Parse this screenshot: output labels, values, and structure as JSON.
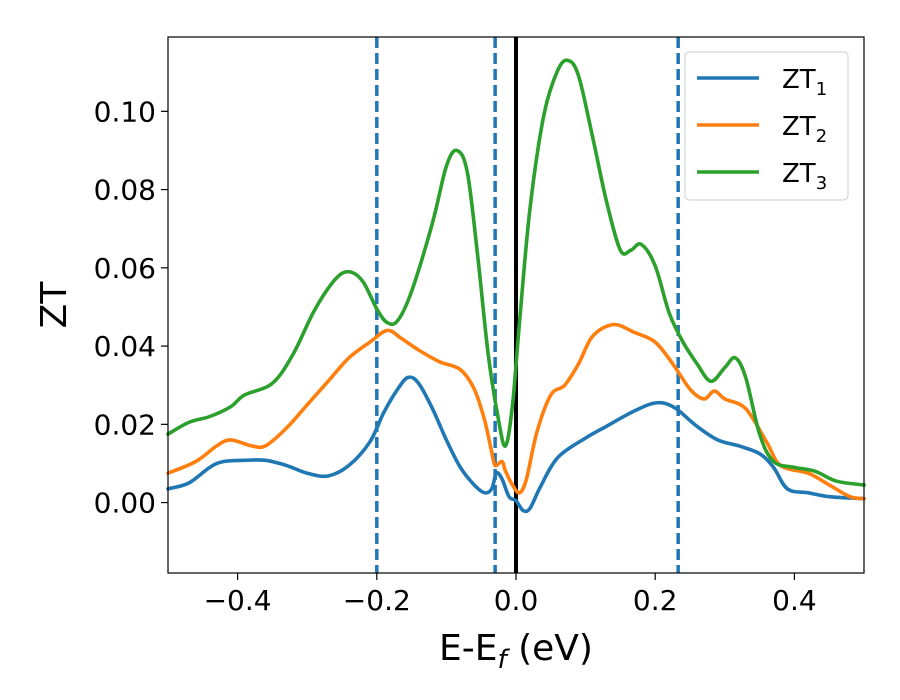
{
  "chart_data": {
    "type": "line",
    "title": "",
    "xlabel": {
      "main": "E-E",
      "sub": "f",
      "suffix": " (eV)"
    },
    "ylabel": "ZT",
    "xlim": [
      -0.5,
      0.5
    ],
    "ylim": [
      -0.018,
      0.119
    ],
    "xticks": [
      -0.4,
      -0.2,
      0.0,
      0.2,
      0.4
    ],
    "xtick_labels": [
      "−0.4",
      "−0.2",
      "0.0",
      "0.2",
      "0.4"
    ],
    "yticks": [
      0.0,
      0.02,
      0.04,
      0.06,
      0.08,
      0.1
    ],
    "ytick_labels": [
      "0.00",
      "0.02",
      "0.04",
      "0.06",
      "0.08",
      "0.10"
    ],
    "grid": false,
    "legend_position": "top-right",
    "vlines": [
      {
        "x": 0.0,
        "style": "solid",
        "color": "#000000"
      },
      {
        "x": -0.2,
        "style": "dashed",
        "color": "#1f77b4"
      },
      {
        "x": -0.03,
        "style": "dashed",
        "color": "#1f77b4"
      },
      {
        "x": 0.233,
        "style": "dashed",
        "color": "#1f77b4"
      }
    ],
    "series": [
      {
        "name": "ZT",
        "sub": "1",
        "color": "#1f77b4",
        "points": [
          [
            -0.5,
            0.0035
          ],
          [
            -0.47,
            0.005
          ],
          [
            -0.44,
            0.009
          ],
          [
            -0.42,
            0.0105
          ],
          [
            -0.39,
            0.0108
          ],
          [
            -0.36,
            0.0108
          ],
          [
            -0.33,
            0.0095
          ],
          [
            -0.3,
            0.0075
          ],
          [
            -0.27,
            0.0068
          ],
          [
            -0.24,
            0.0095
          ],
          [
            -0.21,
            0.0155
          ],
          [
            -0.19,
            0.023
          ],
          [
            -0.17,
            0.029
          ],
          [
            -0.155,
            0.032
          ],
          [
            -0.14,
            0.0305
          ],
          [
            -0.12,
            0.024
          ],
          [
            -0.1,
            0.016
          ],
          [
            -0.08,
            0.009
          ],
          [
            -0.06,
            0.0045
          ],
          [
            -0.045,
            0.0025
          ],
          [
            -0.035,
            0.0035
          ],
          [
            -0.028,
            0.0075
          ],
          [
            -0.02,
            0.006
          ],
          [
            -0.01,
            0.0015
          ],
          [
            0.0,
            0.0005
          ],
          [
            0.01,
            -0.002
          ],
          [
            0.02,
            -0.0015
          ],
          [
            0.035,
            0.004
          ],
          [
            0.06,
            0.0115
          ],
          [
            0.1,
            0.0165
          ],
          [
            0.13,
            0.0195
          ],
          [
            0.16,
            0.0225
          ],
          [
            0.19,
            0.025
          ],
          [
            0.21,
            0.0255
          ],
          [
            0.23,
            0.024
          ],
          [
            0.26,
            0.0195
          ],
          [
            0.29,
            0.016
          ],
          [
            0.32,
            0.0145
          ],
          [
            0.35,
            0.0125
          ],
          [
            0.37,
            0.009
          ],
          [
            0.39,
            0.0035
          ],
          [
            0.42,
            0.0025
          ],
          [
            0.45,
            0.0015
          ],
          [
            0.5,
            0.001
          ]
        ]
      },
      {
        "name": "ZT",
        "sub": "2",
        "color": "#ff7f0e",
        "points": [
          [
            -0.5,
            0.0075
          ],
          [
            -0.46,
            0.0105
          ],
          [
            -0.43,
            0.0145
          ],
          [
            -0.41,
            0.016
          ],
          [
            -0.38,
            0.0145
          ],
          [
            -0.36,
            0.0145
          ],
          [
            -0.33,
            0.019
          ],
          [
            -0.3,
            0.025
          ],
          [
            -0.27,
            0.031
          ],
          [
            -0.24,
            0.037
          ],
          [
            -0.21,
            0.041
          ],
          [
            -0.185,
            0.044
          ],
          [
            -0.165,
            0.042
          ],
          [
            -0.14,
            0.039
          ],
          [
            -0.11,
            0.036
          ],
          [
            -0.08,
            0.034
          ],
          [
            -0.06,
            0.029
          ],
          [
            -0.045,
            0.021
          ],
          [
            -0.035,
            0.013
          ],
          [
            -0.03,
            0.0095
          ],
          [
            -0.02,
            0.0105
          ],
          [
            -0.015,
            0.008
          ],
          [
            -0.005,
            0.0045
          ],
          [
            0.005,
            0.0025
          ],
          [
            0.015,
            0.006
          ],
          [
            0.03,
            0.018
          ],
          [
            0.05,
            0.0275
          ],
          [
            0.07,
            0.03
          ],
          [
            0.09,
            0.0355
          ],
          [
            0.11,
            0.0425
          ],
          [
            0.14,
            0.0455
          ],
          [
            0.17,
            0.0435
          ],
          [
            0.2,
            0.041
          ],
          [
            0.225,
            0.0355
          ],
          [
            0.25,
            0.029
          ],
          [
            0.27,
            0.0265
          ],
          [
            0.285,
            0.0285
          ],
          [
            0.3,
            0.0265
          ],
          [
            0.33,
            0.024
          ],
          [
            0.36,
            0.0155
          ],
          [
            0.38,
            0.0095
          ],
          [
            0.42,
            0.0075
          ],
          [
            0.45,
            0.0045
          ],
          [
            0.48,
            0.0015
          ],
          [
            0.5,
            0.001
          ]
        ]
      },
      {
        "name": "ZT",
        "sub": "3",
        "color": "#2ca02c",
        "points": [
          [
            -0.5,
            0.0175
          ],
          [
            -0.47,
            0.0205
          ],
          [
            -0.44,
            0.022
          ],
          [
            -0.41,
            0.0245
          ],
          [
            -0.39,
            0.0275
          ],
          [
            -0.35,
            0.0305
          ],
          [
            -0.32,
            0.038
          ],
          [
            -0.29,
            0.049
          ],
          [
            -0.26,
            0.057
          ],
          [
            -0.24,
            0.059
          ],
          [
            -0.22,
            0.0565
          ],
          [
            -0.2,
            0.0495
          ],
          [
            -0.185,
            0.046
          ],
          [
            -0.17,
            0.0465
          ],
          [
            -0.15,
            0.054
          ],
          [
            -0.12,
            0.0715
          ],
          [
            -0.1,
            0.086
          ],
          [
            -0.085,
            0.09
          ],
          [
            -0.07,
            0.0845
          ],
          [
            -0.055,
            0.063
          ],
          [
            -0.04,
            0.038
          ],
          [
            -0.025,
            0.021
          ],
          [
            -0.015,
            0.0145
          ],
          [
            -0.005,
            0.025
          ],
          [
            0.005,
            0.046
          ],
          [
            0.02,
            0.075
          ],
          [
            0.04,
            0.099
          ],
          [
            0.06,
            0.1105
          ],
          [
            0.075,
            0.113
          ],
          [
            0.09,
            0.109
          ],
          [
            0.11,
            0.0935
          ],
          [
            0.13,
            0.077
          ],
          [
            0.15,
            0.0645
          ],
          [
            0.165,
            0.0645
          ],
          [
            0.18,
            0.066
          ],
          [
            0.2,
            0.0605
          ],
          [
            0.22,
            0.0485
          ],
          [
            0.24,
            0.041
          ],
          [
            0.26,
            0.0355
          ],
          [
            0.28,
            0.031
          ],
          [
            0.3,
            0.0345
          ],
          [
            0.315,
            0.037
          ],
          [
            0.33,
            0.032
          ],
          [
            0.35,
            0.0175
          ],
          [
            0.37,
            0.0105
          ],
          [
            0.4,
            0.009
          ],
          [
            0.43,
            0.008
          ],
          [
            0.46,
            0.0055
          ],
          [
            0.5,
            0.0045
          ]
        ]
      }
    ]
  }
}
